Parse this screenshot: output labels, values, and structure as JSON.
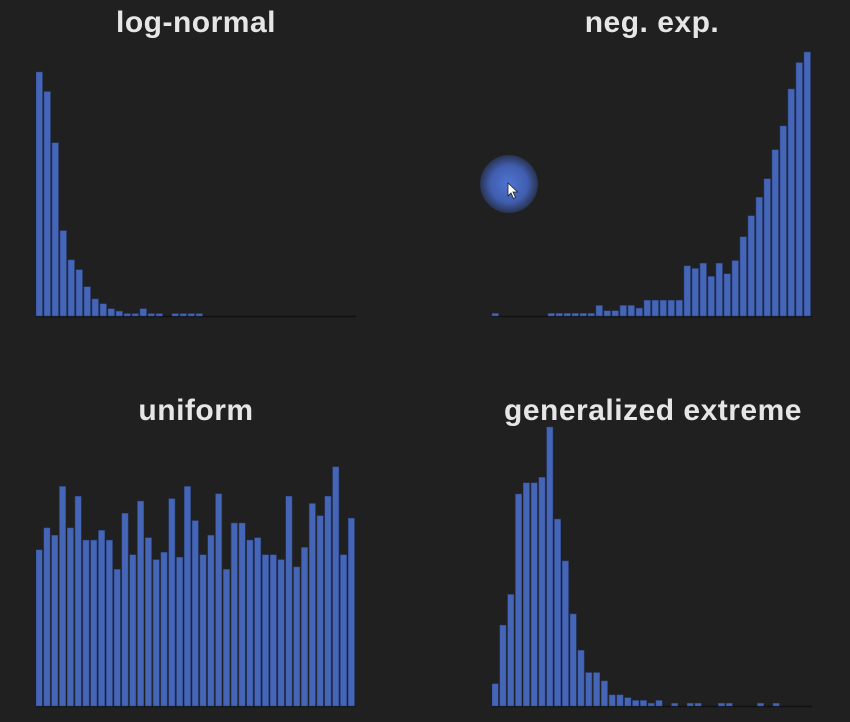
{
  "colors": {
    "background": "#202020",
    "bar": "#4565b6",
    "bar_edge": "#2a3f7a",
    "title": "#e6e6e6"
  },
  "cursor": {
    "icon": "pointer-arrow-icon"
  },
  "chart_data": [
    {
      "type": "bar",
      "title": "log-normal",
      "ylim": [
        0,
        100
      ],
      "values": [
        100,
        92,
        71,
        35,
        23,
        19,
        12,
        7,
        5,
        3,
        2,
        1,
        1,
        3,
        1,
        1,
        0,
        1,
        1,
        1,
        1,
        0,
        0,
        0,
        0,
        0,
        0,
        0,
        0,
        0,
        0,
        0,
        0,
        0,
        0,
        0,
        0,
        0,
        0,
        0
      ]
    },
    {
      "type": "bar",
      "title": "neg. exp.",
      "ylim": [
        0,
        100
      ],
      "values": [
        1,
        0,
        0,
        0,
        0,
        0,
        0,
        1,
        1,
        1,
        1,
        1,
        1,
        4,
        2,
        2,
        4,
        4,
        3,
        6,
        6,
        6,
        6,
        6,
        19,
        18,
        20,
        15,
        20,
        16,
        21,
        30,
        38,
        45,
        52,
        63,
        72,
        86,
        96,
        100
      ]
    },
    {
      "type": "bar",
      "title": "uniform",
      "ylim": [
        0,
        100
      ],
      "values": [
        64,
        73,
        70,
        90,
        73,
        86,
        68,
        68,
        72,
        68,
        56,
        79,
        62,
        84,
        69,
        60,
        63,
        85,
        61,
        90,
        76,
        62,
        70,
        87,
        56,
        75,
        75,
        68,
        69,
        62,
        62,
        60,
        86,
        57,
        65,
        83,
        78,
        86,
        98,
        62,
        77
      ]
    },
    {
      "type": "bar",
      "title": "generalized extreme",
      "ylim": [
        0,
        100
      ],
      "values": [
        8,
        29,
        40,
        76,
        80,
        80,
        82,
        100,
        67,
        52,
        33,
        20,
        12,
        12,
        9,
        4,
        4,
        3,
        2,
        2,
        1,
        2,
        0,
        1,
        0,
        1,
        1,
        0,
        0,
        1,
        1,
        0,
        0,
        0,
        1,
        0,
        1,
        0,
        0,
        0,
        0
      ]
    }
  ]
}
